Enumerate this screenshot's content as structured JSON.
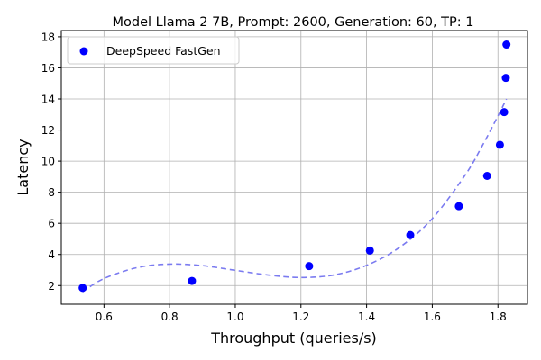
{
  "chart_data": {
    "type": "scatter",
    "title": "Model Llama 2 7B, Prompt: 2600, Generation: 60, TP: 1",
    "xlabel": "Throughput (queries/s)",
    "ylabel": "Latency",
    "xlim": [
      0.47,
      1.89
    ],
    "ylim": [
      0.8,
      18.4
    ],
    "xticks": [
      0.6,
      0.8,
      1.0,
      1.2,
      1.4,
      1.6,
      1.8
    ],
    "xtick_labels": [
      "0.6",
      "0.8",
      "1.0",
      "1.2",
      "1.4",
      "1.6",
      "1.8"
    ],
    "yticks": [
      2,
      4,
      6,
      8,
      10,
      12,
      14,
      16,
      18
    ],
    "ytick_labels": [
      "2",
      "4",
      "6",
      "8",
      "10",
      "12",
      "14",
      "16",
      "18"
    ],
    "grid": true,
    "legend_position": "upper-left",
    "series": [
      {
        "name": "DeepSpeed FastGen",
        "color": "#0000ff",
        "x": [
          0.535,
          0.868,
          1.225,
          1.41,
          1.533,
          1.681,
          1.767,
          1.806,
          1.819,
          1.824,
          1.826
        ],
        "y": [
          1.85,
          2.3,
          3.25,
          4.25,
          5.25,
          7.1,
          9.05,
          11.05,
          13.15,
          15.35,
          17.5
        ]
      }
    ],
    "trend_line": {
      "style": "dashed",
      "color": "#7b7bf0",
      "x": [
        0.535,
        0.6,
        0.7,
        0.8,
        0.9,
        1.0,
        1.1,
        1.2,
        1.3,
        1.4,
        1.5,
        1.6,
        1.7,
        1.75,
        1.8,
        1.826
      ],
      "y": [
        1.6,
        2.45,
        3.15,
        3.38,
        3.28,
        2.98,
        2.68,
        2.52,
        2.68,
        3.3,
        4.45,
        6.3,
        9.1,
        10.9,
        12.9,
        14.0
      ]
    }
  }
}
